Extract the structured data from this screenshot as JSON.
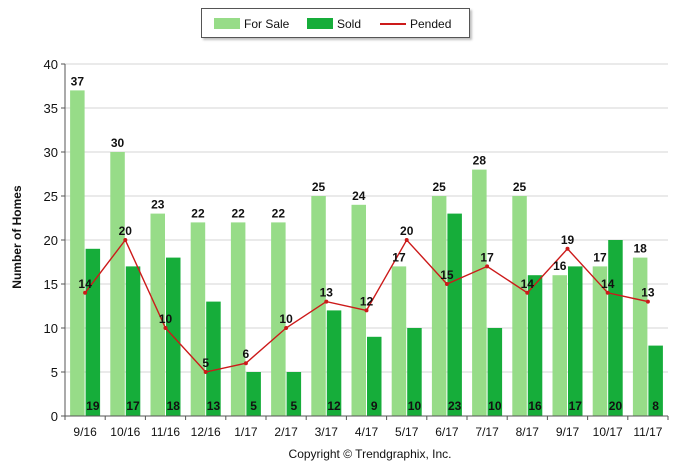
{
  "legend": {
    "items": [
      {
        "label": "For Sale",
        "color": "#97dc88"
      },
      {
        "label": "Sold",
        "color": "#16ad3a"
      },
      {
        "label": "Pended",
        "color": "#cc1a1a"
      }
    ]
  },
  "footer": {
    "copyright": "Copyright © Trendgraphix, Inc."
  },
  "chart_data": {
    "type": "bar",
    "title": "",
    "xlabel": "",
    "ylabel": "Number of Homes",
    "ylim": [
      0,
      40
    ],
    "yticks": [
      0,
      5,
      10,
      15,
      20,
      25,
      30,
      35,
      40
    ],
    "grid": true,
    "legend_position": "top-center",
    "categories": [
      "9/16",
      "10/16",
      "11/16",
      "12/16",
      "1/17",
      "2/17",
      "3/17",
      "4/17",
      "5/17",
      "6/17",
      "7/17",
      "8/17",
      "9/17",
      "10/17",
      "11/17"
    ],
    "series": [
      {
        "name": "For Sale",
        "type": "bar",
        "color": "#97dc88",
        "values": [
          37,
          30,
          23,
          22,
          22,
          22,
          25,
          24,
          17,
          25,
          28,
          25,
          16,
          17,
          18
        ]
      },
      {
        "name": "Sold",
        "type": "bar",
        "color": "#16ad3a",
        "values": [
          19,
          17,
          18,
          13,
          5,
          5,
          12,
          9,
          10,
          23,
          10,
          16,
          17,
          20,
          8
        ]
      },
      {
        "name": "Pended",
        "type": "line",
        "color": "#cc1a1a",
        "values": [
          14,
          20,
          10,
          5,
          6,
          10,
          13,
          12,
          20,
          15,
          17,
          14,
          19,
          14,
          13
        ]
      }
    ]
  }
}
